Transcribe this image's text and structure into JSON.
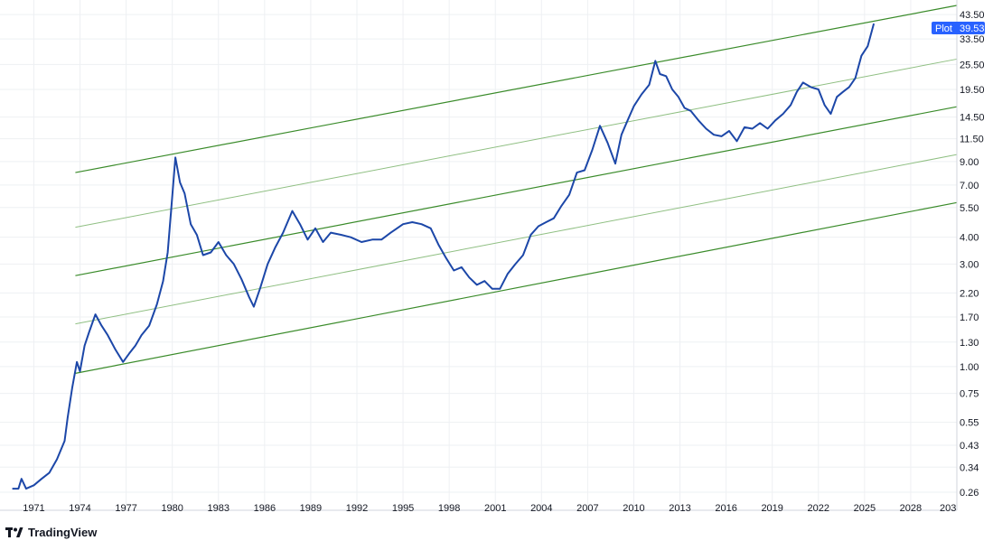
{
  "branding": {
    "name": "TradingView",
    "logo_icon": "tradingview-logo-icon"
  },
  "chart_data": {
    "type": "line",
    "scale": "log",
    "grid": true,
    "title": "",
    "xlabel": "",
    "ylabel": "",
    "xlim": [
      1968.8,
      2031.0
    ],
    "ylim": [
      0.26,
      48.0
    ],
    "x_ticks": [
      "1971",
      "1974",
      "1977",
      "1980",
      "1983",
      "1986",
      "1989",
      "1992",
      "1995",
      "1998",
      "2001",
      "2004",
      "2007",
      "2010",
      "2013",
      "2016",
      "2019",
      "2022",
      "2025",
      "2028",
      "203"
    ],
    "y_ticks": [
      "43.50",
      "33.50",
      "25.50",
      "19.50",
      "14.50",
      "11.50",
      "9.00",
      "7.00",
      "5.50",
      "4.00",
      "3.00",
      "2.20",
      "1.70",
      "1.30",
      "1.00",
      "0.75",
      "0.55",
      "0.43",
      "0.34",
      "0.26"
    ],
    "last_value_label": {
      "name": "Plot",
      "value": "39.53"
    },
    "colors": {
      "series": "#1c47a8",
      "channel": "#3a8b2a",
      "channel_thin": "#8fbf82",
      "grid": "#eef0f3",
      "badge": "#2962ff"
    },
    "series": [
      {
        "name": "Plot",
        "x": [
          1969.6,
          1970.0,
          1970.2,
          1970.5,
          1971.0,
          1971.5,
          1972.0,
          1972.5,
          1973.0,
          1973.2,
          1973.5,
          1973.8,
          1974.0,
          1974.3,
          1974.6,
          1975.0,
          1975.4,
          1975.8,
          1976.3,
          1976.8,
          1977.2,
          1977.6,
          1978.0,
          1978.5,
          1979.0,
          1979.4,
          1979.7,
          1979.95,
          1980.2,
          1980.5,
          1980.8,
          1981.2,
          1981.6,
          1982.0,
          1982.5,
          1983.0,
          1983.5,
          1984.0,
          1984.5,
          1985.0,
          1985.3,
          1985.7,
          1986.2,
          1986.7,
          1987.2,
          1987.8,
          1988.3,
          1988.8,
          1989.3,
          1989.8,
          1990.3,
          1991.0,
          1991.6,
          1992.3,
          1993.0,
          1993.6,
          1994.2,
          1995.0,
          1995.6,
          1996.2,
          1996.8,
          1997.3,
          1997.8,
          1998.3,
          1998.8,
          1999.3,
          1999.8,
          2000.3,
          2000.8,
          2001.3,
          2001.8,
          2002.3,
          2002.8,
          2003.3,
          2003.8,
          2004.3,
          2004.8,
          2005.3,
          2005.8,
          2006.3,
          2006.8,
          2007.3,
          2007.8,
          2008.3,
          2008.8,
          2009.2,
          2009.6,
          2010.0,
          2010.5,
          2011.0,
          2011.4,
          2011.7,
          2012.1,
          2012.5,
          2012.9,
          2013.3,
          2013.7,
          2014.2,
          2014.7,
          2015.2,
          2015.7,
          2016.2,
          2016.7,
          2017.2,
          2017.7,
          2018.2,
          2018.7,
          2019.2,
          2019.7,
          2020.2,
          2020.6,
          2021.0,
          2021.5,
          2022.0,
          2022.4,
          2022.8,
          2023.2,
          2023.6,
          2024.0,
          2024.4,
          2024.8,
          2025.2,
          2025.6
        ],
        "values": [
          0.27,
          0.27,
          0.3,
          0.27,
          0.28,
          0.3,
          0.32,
          0.37,
          0.45,
          0.58,
          0.8,
          1.05,
          0.95,
          1.25,
          1.45,
          1.75,
          1.55,
          1.4,
          1.2,
          1.05,
          1.15,
          1.25,
          1.4,
          1.55,
          1.95,
          2.5,
          3.4,
          5.6,
          9.4,
          7.2,
          6.4,
          4.6,
          4.1,
          3.3,
          3.4,
          3.8,
          3.3,
          3.0,
          2.55,
          2.1,
          1.9,
          2.3,
          3.0,
          3.6,
          4.2,
          5.3,
          4.6,
          3.9,
          4.4,
          3.8,
          4.2,
          4.1,
          4.0,
          3.8,
          3.9,
          3.9,
          4.2,
          4.6,
          4.7,
          4.6,
          4.4,
          3.7,
          3.2,
          2.8,
          2.9,
          2.6,
          2.4,
          2.5,
          2.3,
          2.3,
          2.7,
          3.0,
          3.3,
          4.1,
          4.5,
          4.7,
          4.9,
          5.6,
          6.3,
          8.0,
          8.2,
          10.2,
          13.2,
          11.0,
          8.8,
          12.0,
          14.0,
          16.3,
          18.5,
          20.5,
          26.5,
          23.0,
          22.5,
          19.5,
          18.0,
          16.0,
          15.5,
          14.0,
          12.8,
          12.0,
          11.8,
          12.5,
          11.2,
          13.0,
          12.8,
          13.6,
          12.8,
          14.0,
          15.0,
          16.5,
          19.0,
          21.0,
          20.0,
          19.5,
          16.5,
          15.0,
          18.0,
          19.0,
          20.0,
          22.0,
          28.0,
          31.0,
          39.53
        ]
      }
    ],
    "channel_lines": [
      {
        "name": "",
        "style": "main",
        "x": [
          1973.7,
          2031.0
        ],
        "values": [
          8.0,
          48.0
        ]
      },
      {
        "name": "",
        "style": "thin",
        "x": [
          1973.7,
          2031.0
        ],
        "values": [
          4.45,
          27.0
        ]
      },
      {
        "name": "",
        "style": "main",
        "x": [
          1973.7,
          2031.0
        ],
        "values": [
          2.65,
          16.2
        ]
      },
      {
        "name": "",
        "style": "thin",
        "x": [
          1973.7,
          2031.0
        ],
        "values": [
          1.58,
          9.7
        ]
      },
      {
        "name": "",
        "style": "main",
        "x": [
          1973.7,
          2031.0
        ],
        "values": [
          0.93,
          5.8
        ]
      }
    ]
  }
}
